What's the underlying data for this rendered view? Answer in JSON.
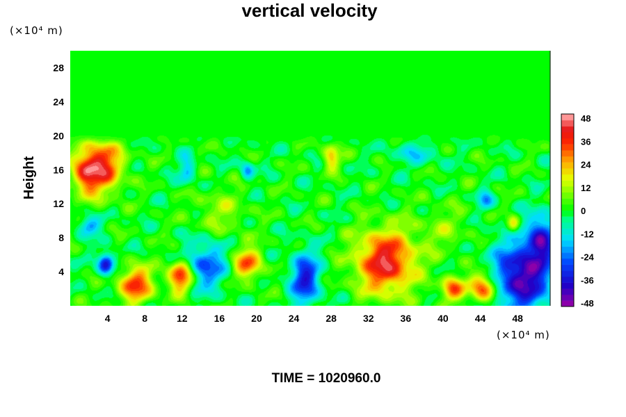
{
  "chart_data": {
    "type": "heatmap",
    "title": "vertical velocity",
    "ylabel": "Height",
    "x_unit": "(×10⁴ m)",
    "y_unit": "(×10⁴ m)",
    "footer": "TIME = 1020960.0",
    "xlim": [
      0,
      51.5
    ],
    "ylim": [
      0,
      30
    ],
    "x_ticks": [
      4,
      8,
      12,
      16,
      20,
      24,
      28,
      32,
      36,
      40,
      44,
      48
    ],
    "y_ticks": [
      4,
      8,
      12,
      16,
      20,
      24,
      28
    ],
    "colorbar": {
      "min": -48,
      "max": 48,
      "ticks": [
        -48,
        -36,
        -24,
        -12,
        0,
        12,
        24,
        36,
        48
      ]
    },
    "features": [
      {
        "x": 3.2,
        "y": 16.5,
        "sx": 1.6,
        "sy": 2.2,
        "v": 40
      },
      {
        "x": 1.5,
        "y": 15.5,
        "sx": 0.9,
        "sy": 1.6,
        "v": 22
      },
      {
        "x": 7.0,
        "y": 2.5,
        "sx": 1.3,
        "sy": 1.5,
        "v": 34
      },
      {
        "x": 11.8,
        "y": 3.5,
        "sx": 0.9,
        "sy": 1.3,
        "v": 40
      },
      {
        "x": 19.0,
        "y": 5.0,
        "sx": 1.1,
        "sy": 1.3,
        "v": 30
      },
      {
        "x": 33.8,
        "y": 5.2,
        "sx": 2.2,
        "sy": 2.6,
        "v": 42
      },
      {
        "x": 28.0,
        "y": 17.5,
        "sx": 0.6,
        "sy": 1.0,
        "v": 24
      },
      {
        "x": 41.0,
        "y": 2.0,
        "sx": 0.9,
        "sy": 1.0,
        "v": 30
      },
      {
        "x": 44.3,
        "y": 2.2,
        "sx": 1.0,
        "sy": 1.2,
        "v": 38
      },
      {
        "x": 47.5,
        "y": 9.5,
        "sx": 0.5,
        "sy": 0.8,
        "v": 22
      },
      {
        "x": 14.5,
        "y": 4.8,
        "sx": 1.6,
        "sy": 2.0,
        "v": -26
      },
      {
        "x": 25.2,
        "y": 3.2,
        "sx": 1.1,
        "sy": 2.2,
        "v": -34
      },
      {
        "x": 3.8,
        "y": 5.0,
        "sx": 0.6,
        "sy": 0.9,
        "v": -38
      },
      {
        "x": 48.5,
        "y": 3.5,
        "sx": 2.2,
        "sy": 3.0,
        "v": -44
      },
      {
        "x": 50.5,
        "y": 8.0,
        "sx": 1.0,
        "sy": 2.0,
        "v": -32
      },
      {
        "x": 12.5,
        "y": 16.0,
        "sx": 0.6,
        "sy": 1.2,
        "v": -18
      },
      {
        "x": 19.0,
        "y": 16.0,
        "sx": 0.5,
        "sy": 0.8,
        "v": -20
      },
      {
        "x": 2.0,
        "y": 9.5,
        "sx": 0.8,
        "sy": 0.8,
        "v": -22
      },
      {
        "x": 44.5,
        "y": 12.5,
        "sx": 0.6,
        "sy": 0.8,
        "v": -18
      },
      {
        "x": 37.0,
        "y": 18.0,
        "sx": 1.8,
        "sy": 1.0,
        "v": -12
      },
      {
        "x": 16.0,
        "y": 11.0,
        "sx": 2.0,
        "sy": 2.0,
        "v": 10
      },
      {
        "x": 40.0,
        "y": 9.0,
        "sx": 2.0,
        "sy": 2.0,
        "v": 8
      }
    ]
  }
}
